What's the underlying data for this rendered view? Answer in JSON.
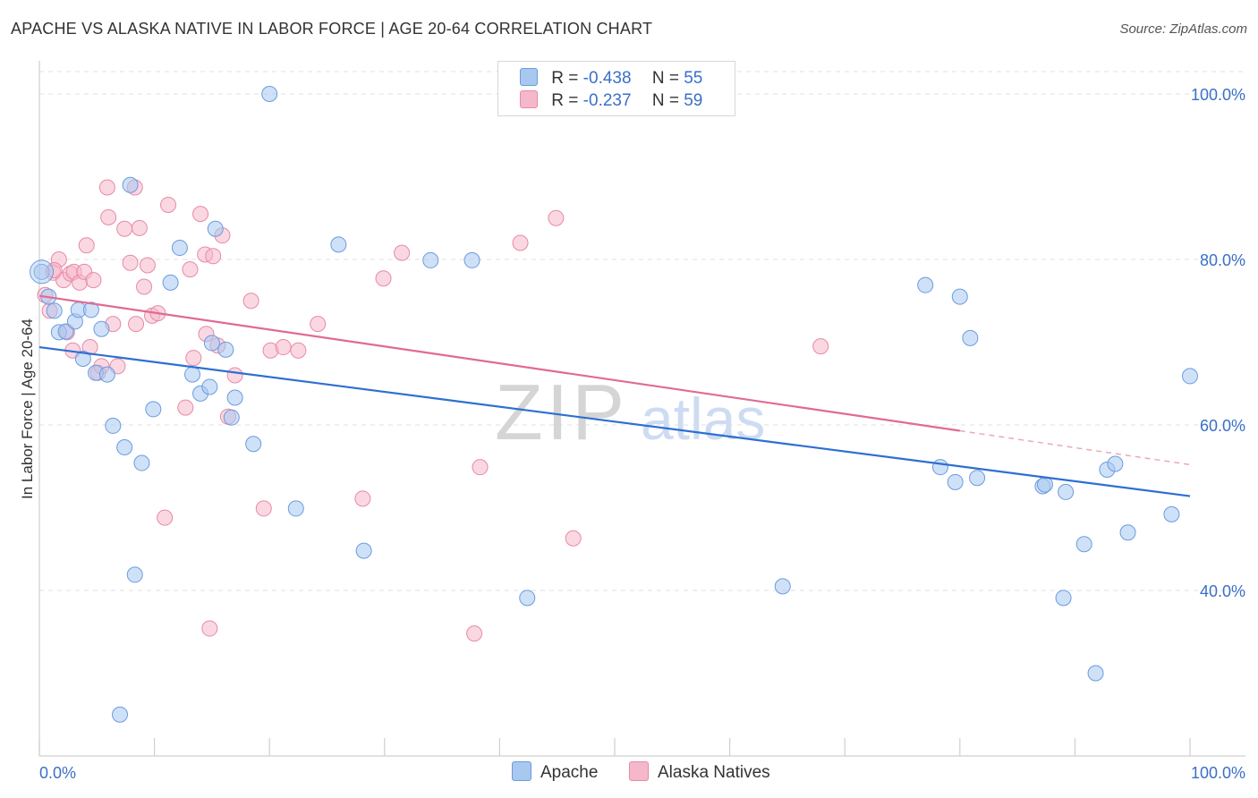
{
  "title": "APACHE VS ALASKA NATIVE IN LABOR FORCE | AGE 20-64 CORRELATION CHART",
  "source": "Source: ZipAtlas.com",
  "watermark": {
    "zip": "ZIP",
    "atlas": "atlas"
  },
  "legend": [
    {
      "r_label": "R =",
      "r_value": "-0.438",
      "n_label": "N =",
      "n_value": "55",
      "color": "#a8c8f0"
    },
    {
      "r_label": "R =",
      "r_value": "-0.237",
      "n_label": "N =",
      "n_value": "59",
      "color": "#f5b8cb"
    }
  ],
  "bottom_legend": [
    {
      "label": "Apache",
      "color": "#a8c8f0"
    },
    {
      "label": "Alaska Natives",
      "color": "#f5b8cb"
    }
  ],
  "chart_data": {
    "type": "scatter",
    "title": "APACHE VS ALASKA NATIVE IN LABOR FORCE | AGE 20-64 CORRELATION CHART",
    "xlabel": "",
    "ylabel": "In Labor Force | Age 20-64",
    "xlim": [
      0,
      100
    ],
    "ylim": [
      20,
      104
    ],
    "x_tick_labels": [
      "0.0%",
      "100.0%"
    ],
    "y_ticks": [
      40,
      60,
      80,
      100
    ],
    "y_tick_labels": [
      "40.0%",
      "60.0%",
      "80.0%",
      "100.0%"
    ],
    "grid": true,
    "colors": {
      "apache_fill": "#a8c8f0",
      "apache_stroke": "#6b9be0",
      "apache_line": "#2d6fd1",
      "alaska_fill": "#f5b8cb",
      "alaska_stroke": "#e889a8",
      "alaska_line": "#e06a93"
    },
    "series": [
      {
        "name": "Apache",
        "points": [
          [
            0.2,
            78.5
          ],
          [
            0.8,
            75.5
          ],
          [
            1.3,
            73.8
          ],
          [
            1.7,
            71.2
          ],
          [
            2.3,
            71.3
          ],
          [
            3.1,
            72.5
          ],
          [
            3.4,
            73.9
          ],
          [
            3.8,
            68.0
          ],
          [
            4.5,
            73.9
          ],
          [
            4.9,
            66.3
          ],
          [
            5.4,
            71.6
          ],
          [
            5.9,
            66.1
          ],
          [
            6.4,
            59.9
          ],
          [
            7.0,
            25.0
          ],
          [
            7.4,
            57.3
          ],
          [
            7.9,
            89.0
          ],
          [
            8.3,
            41.9
          ],
          [
            8.9,
            55.4
          ],
          [
            9.9,
            61.9
          ],
          [
            11.4,
            77.2
          ],
          [
            12.2,
            81.4
          ],
          [
            13.3,
            66.1
          ],
          [
            14.0,
            63.8
          ],
          [
            14.8,
            64.6
          ],
          [
            15.3,
            83.7
          ],
          [
            16.2,
            69.1
          ],
          [
            16.7,
            60.9
          ],
          [
            17.0,
            63.3
          ],
          [
            18.6,
            57.7
          ],
          [
            20.0,
            100.0
          ],
          [
            22.3,
            49.9
          ],
          [
            26.0,
            81.8
          ],
          [
            28.2,
            44.8
          ],
          [
            34.0,
            79.9
          ],
          [
            37.6,
            79.9
          ],
          [
            42.4,
            39.1
          ],
          [
            64.6,
            40.5
          ],
          [
            77.0,
            76.9
          ],
          [
            78.3,
            54.9
          ],
          [
            79.6,
            53.1
          ],
          [
            80.0,
            75.5
          ],
          [
            80.9,
            70.5
          ],
          [
            81.5,
            53.6
          ],
          [
            87.2,
            52.6
          ],
          [
            87.4,
            52.8
          ],
          [
            89.2,
            51.9
          ],
          [
            90.8,
            45.6
          ],
          [
            89.0,
            39.1
          ],
          [
            91.8,
            30.0
          ],
          [
            92.8,
            54.6
          ],
          [
            93.5,
            55.3
          ],
          [
            94.6,
            47.0
          ],
          [
            98.4,
            49.2
          ],
          [
            100.0,
            65.9
          ],
          [
            15.0,
            69.9
          ]
        ],
        "trend": {
          "x": [
            0,
            100
          ],
          "y": [
            69.4,
            51.4
          ]
        }
      },
      {
        "name": "Alaska Natives",
        "points": [
          [
            0.5,
            75.7
          ],
          [
            0.9,
            73.8
          ],
          [
            1.2,
            78.4
          ],
          [
            1.7,
            80.0
          ],
          [
            2.1,
            77.5
          ],
          [
            2.4,
            71.2
          ],
          [
            2.7,
            78.3
          ],
          [
            3.0,
            78.5
          ],
          [
            3.5,
            77.2
          ],
          [
            3.9,
            78.5
          ],
          [
            4.1,
            81.7
          ],
          [
            4.4,
            69.4
          ],
          [
            4.7,
            77.5
          ],
          [
            5.1,
            66.3
          ],
          [
            5.4,
            67.1
          ],
          [
            5.9,
            88.7
          ],
          [
            6.0,
            85.1
          ],
          [
            6.4,
            72.2
          ],
          [
            6.8,
            67.1
          ],
          [
            7.4,
            83.7
          ],
          [
            7.9,
            79.6
          ],
          [
            8.3,
            88.7
          ],
          [
            8.4,
            72.2
          ],
          [
            8.7,
            83.8
          ],
          [
            9.1,
            76.7
          ],
          [
            9.4,
            79.3
          ],
          [
            9.8,
            73.2
          ],
          [
            10.3,
            73.5
          ],
          [
            10.9,
            48.8
          ],
          [
            11.2,
            86.6
          ],
          [
            12.7,
            62.1
          ],
          [
            13.1,
            78.8
          ],
          [
            13.4,
            68.1
          ],
          [
            14.0,
            85.5
          ],
          [
            14.4,
            80.6
          ],
          [
            14.5,
            71.0
          ],
          [
            14.8,
            35.4
          ],
          [
            15.1,
            80.4
          ],
          [
            15.5,
            69.6
          ],
          [
            15.9,
            82.9
          ],
          [
            16.4,
            61.0
          ],
          [
            17.0,
            66.0
          ],
          [
            18.4,
            75.0
          ],
          [
            19.5,
            49.9
          ],
          [
            20.1,
            69.0
          ],
          [
            21.2,
            69.4
          ],
          [
            22.5,
            69.0
          ],
          [
            24.2,
            72.2
          ],
          [
            28.1,
            51.1
          ],
          [
            29.9,
            77.7
          ],
          [
            31.5,
            80.8
          ],
          [
            37.8,
            34.8
          ],
          [
            38.3,
            54.9
          ],
          [
            41.8,
            82.0
          ],
          [
            44.9,
            85.0
          ],
          [
            46.4,
            46.3
          ],
          [
            67.9,
            69.5
          ],
          [
            1.3,
            78.7
          ],
          [
            2.9,
            69.0
          ]
        ],
        "trend": {
          "x": [
            0,
            80
          ],
          "y": [
            75.6,
            59.3
          ]
        },
        "trend_dashed": {
          "x": [
            80,
            100
          ],
          "y": [
            59.3,
            55.2
          ]
        }
      }
    ]
  }
}
